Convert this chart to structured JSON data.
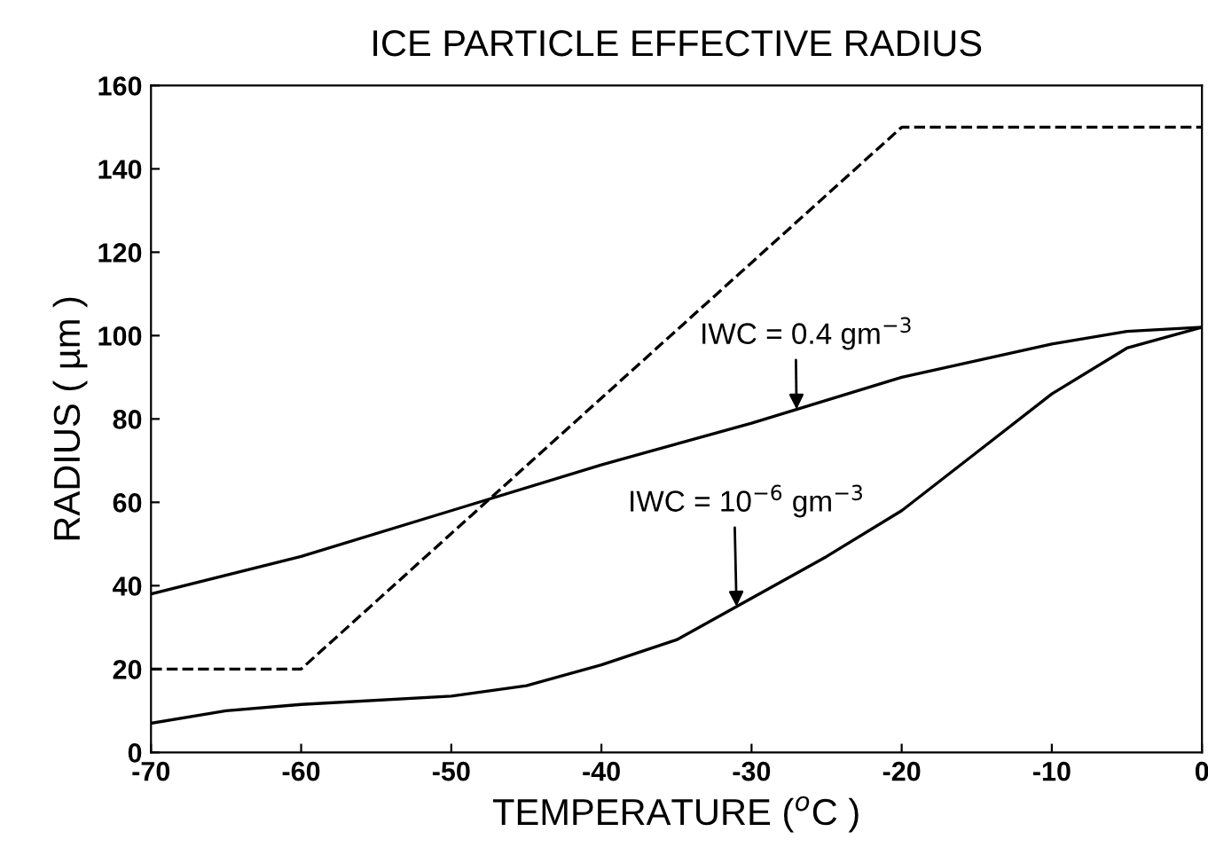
{
  "chart_data": {
    "type": "line",
    "title": "ICE PARTICLE EFFECTIVE RADIUS",
    "xlabel": "TEMPERATURE ($^{o}$C )",
    "ylabel": "RADIUS ( µm )",
    "series": [
      {
        "color": "#000000",
        "line_style": "dashed",
        "x": [
          -70,
          -60,
          -20,
          0
        ],
        "values": [
          20,
          20,
          150,
          150
        ]
      },
      {
        "color": "#000000",
        "line_style": "solid",
        "x": [
          -70,
          -60,
          -50,
          -40,
          -30,
          -20,
          -10,
          -5,
          0
        ],
        "values": [
          38,
          47,
          58,
          69,
          79,
          90,
          98,
          101,
          102
        ]
      },
      {
        "color": "#000000",
        "line_style": "solid",
        "x": [
          -70,
          -65,
          -60,
          -50,
          -45,
          -40,
          -35,
          -30,
          -25,
          -20,
          -15,
          -10,
          -5,
          0
        ],
        "values": [
          7,
          10,
          11.5,
          13.5,
          16,
          21,
          27,
          37,
          47,
          58,
          72,
          86,
          97,
          102
        ]
      }
    ],
    "annotations": [
      {
        "text": "IWC = 0.4 gm$^{−3}$",
        "x": -27,
        "y": 82.3
      },
      {
        "text": "IWC = 10$^{−6}$ gm$^{−3}$",
        "x": -31,
        "y": 35
      }
    ],
    "xlim": [
      -70,
      0
    ],
    "xticks": [
      -70,
      -60,
      -50,
      -40,
      -30,
      -20,
      -10,
      0
    ],
    "ylim": [
      0,
      160
    ],
    "yticks": [
      0,
      20,
      40,
      60,
      80,
      100,
      120,
      140,
      160
    ],
    "grid": false,
    "legend": false
  }
}
